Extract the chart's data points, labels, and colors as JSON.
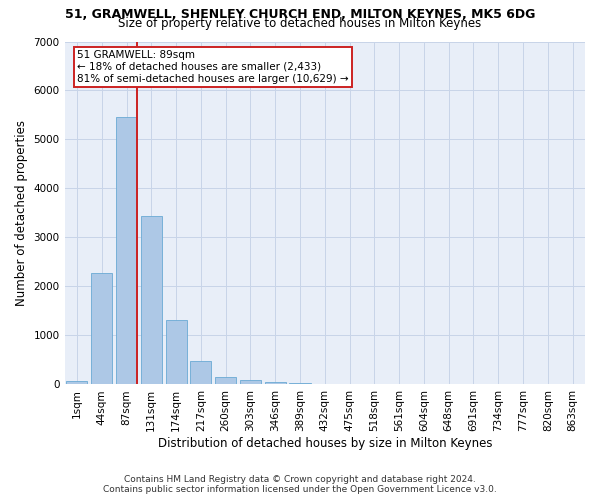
{
  "title": "51, GRAMWELL, SHENLEY CHURCH END, MILTON KEYNES, MK5 6DG",
  "subtitle": "Size of property relative to detached houses in Milton Keynes",
  "xlabel": "Distribution of detached houses by size in Milton Keynes",
  "ylabel": "Number of detached properties",
  "footer_line1": "Contains HM Land Registry data © Crown copyright and database right 2024.",
  "footer_line2": "Contains public sector information licensed under the Open Government Licence v3.0.",
  "annotation_line1": "51 GRAMWELL: 89sqm",
  "annotation_line2": "← 18% of detached houses are smaller (2,433)",
  "annotation_line3": "81% of semi-detached houses are larger (10,629) →",
  "bar_color": "#adc8e6",
  "bar_edge_color": "#6aaad4",
  "highlight_color": "#cc2222",
  "grid_color": "#c8d4e8",
  "bg_color": "#e8eef8",
  "categories": [
    "1sqm",
    "44sqm",
    "87sqm",
    "131sqm",
    "174sqm",
    "217sqm",
    "260sqm",
    "303sqm",
    "346sqm",
    "389sqm",
    "432sqm",
    "475sqm",
    "518sqm",
    "561sqm",
    "604sqm",
    "648sqm",
    "691sqm",
    "734sqm",
    "777sqm",
    "820sqm",
    "863sqm"
  ],
  "values": [
    80,
    2270,
    5450,
    3430,
    1310,
    470,
    155,
    95,
    60,
    35,
    10,
    5,
    2,
    0,
    0,
    0,
    0,
    0,
    0,
    0,
    0
  ],
  "property_bin_index": 2,
  "ylim": [
    0,
    7000
  ],
  "yticks": [
    0,
    1000,
    2000,
    3000,
    4000,
    5000,
    6000,
    7000
  ],
  "title_fontsize": 9,
  "subtitle_fontsize": 8.5,
  "ylabel_fontsize": 8.5,
  "xlabel_fontsize": 8.5,
  "tick_fontsize": 7.5,
  "footer_fontsize": 6.5
}
